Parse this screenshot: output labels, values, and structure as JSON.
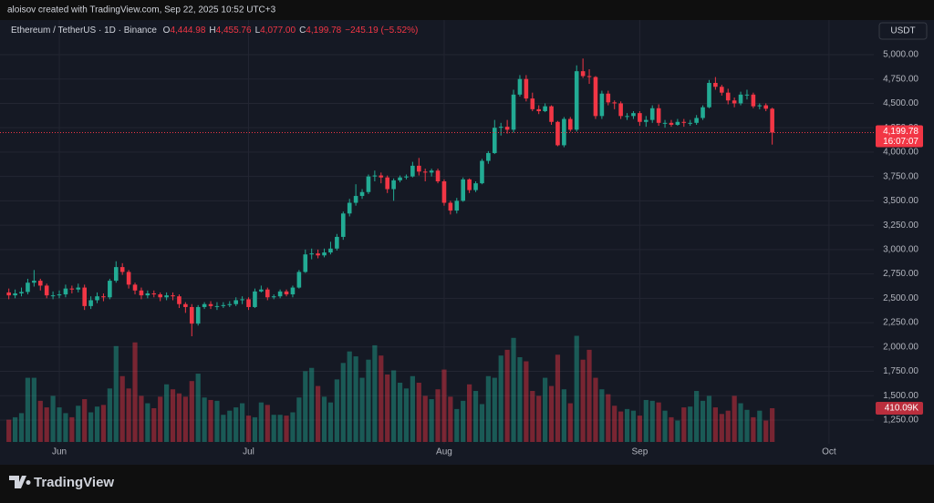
{
  "header": {
    "credit": "aloisov created with TradingView.com, Sep 22, 2025 10:52 UTC+3"
  },
  "footer": {
    "logo": "TradingView"
  },
  "chart_data": {
    "type": "candlestick",
    "title": "Ethereum / TetherUS · 1D · Binance",
    "ohlc_header": [
      {
        "key": "O",
        "value": "4,444.98"
      },
      {
        "key": "H",
        "value": "4,455.76"
      },
      {
        "key": "L",
        "value": "4,077.00"
      },
      {
        "key": "C",
        "value": "4,199.78"
      }
    ],
    "change": "−245.19 (−5.52%)",
    "currency": "USDT",
    "last_price_label": "4,199.78",
    "countdown": "16:07:07",
    "up_color": "#22ab94",
    "down_color": "#f23645",
    "grid": true,
    "open": [
      2560,
      2530,
      2550,
      2565,
      2660,
      2680,
      2630,
      2530,
      2530,
      2540,
      2600,
      2590,
      2610,
      2420,
      2480,
      2520,
      2510,
      2680,
      2820,
      2770,
      2640,
      2580,
      2530,
      2550,
      2540,
      2510,
      2530,
      2520,
      2440,
      2410,
      2240,
      2410,
      2440,
      2420,
      2420,
      2430,
      2440,
      2480,
      2490,
      2410,
      2570,
      2590,
      2510,
      2520,
      2570,
      2540,
      2610,
      2770,
      2950,
      2960,
      2940,
      2970,
      3010,
      3130,
      3370,
      3480,
      3550,
      3590,
      3750,
      3760,
      3740,
      3620,
      3710,
      3740,
      3750,
      3860,
      3800,
      3790,
      3810,
      3700,
      3480,
      3400,
      3500,
      3720,
      3610,
      3680,
      3910,
      3990,
      4250,
      4260,
      4230,
      4590,
      4750,
      4550,
      4440,
      4420,
      4470,
      4310,
      4070,
      4340,
      4230,
      4830,
      4780,
      4770,
      4370,
      4600,
      4510,
      4500,
      4370,
      4370,
      4400,
      4310,
      4330,
      4450,
      4300,
      4300,
      4280,
      4310,
      4300,
      4300,
      4350,
      4460,
      4710,
      4670,
      4610,
      4530,
      4500,
      4590,
      4590,
      4470,
      4480,
      4444.98
    ],
    "high": [
      2600,
      2590,
      2610,
      2700,
      2790,
      2700,
      2650,
      2570,
      2580,
      2640,
      2630,
      2650,
      2640,
      2520,
      2560,
      2550,
      2700,
      2880,
      2860,
      2790,
      2660,
      2610,
      2580,
      2580,
      2560,
      2560,
      2560,
      2540,
      2460,
      2440,
      2430,
      2460,
      2470,
      2460,
      2460,
      2470,
      2510,
      2520,
      2510,
      2600,
      2630,
      2610,
      2540,
      2590,
      2590,
      2630,
      2790,
      3000,
      3010,
      3000,
      3010,
      3080,
      3160,
      3390,
      3520,
      3670,
      3620,
      3770,
      3810,
      3790,
      3760,
      3730,
      3760,
      3770,
      3900,
      3940,
      3830,
      3830,
      3830,
      3720,
      3500,
      3530,
      3740,
      3730,
      3700,
      3930,
      4010,
      4330,
      4300,
      4330,
      4640,
      4790,
      4790,
      4610,
      4480,
      4500,
      4480,
      4320,
      4360,
      4360,
      4890,
      4960,
      4850,
      4780,
      4630,
      4630,
      4530,
      4520,
      4400,
      4420,
      4420,
      4370,
      4480,
      4490,
      4330,
      4330,
      4340,
      4340,
      4330,
      4380,
      4480,
      4740,
      4770,
      4690,
      4650,
      4560,
      4620,
      4640,
      4610,
      4500,
      4500,
      4455.76
    ],
    "low": [
      2490,
      2500,
      2520,
      2540,
      2620,
      2580,
      2500,
      2490,
      2500,
      2510,
      2550,
      2560,
      2380,
      2390,
      2450,
      2470,
      2490,
      2660,
      2740,
      2600,
      2540,
      2490,
      2500,
      2510,
      2470,
      2480,
      2480,
      2400,
      2350,
      2110,
      2220,
      2390,
      2390,
      2380,
      2400,
      2410,
      2420,
      2440,
      2380,
      2400,
      2560,
      2480,
      2490,
      2500,
      2520,
      2510,
      2600,
      2760,
      2900,
      2910,
      2920,
      2950,
      2990,
      3100,
      3340,
      3450,
      3520,
      3570,
      3700,
      3680,
      3580,
      3500,
      3690,
      3720,
      3740,
      3760,
      3700,
      3750,
      3680,
      3450,
      3360,
      3370,
      3490,
      3580,
      3590,
      3670,
      3880,
      3980,
      4170,
      4190,
      4200,
      4570,
      4520,
      4420,
      4390,
      4410,
      4280,
      4060,
      4050,
      4210,
      4210,
      4760,
      4700,
      4340,
      4340,
      4480,
      4440,
      4340,
      4330,
      4340,
      4270,
      4260,
      4300,
      4270,
      4250,
      4260,
      4270,
      4260,
      4270,
      4280,
      4330,
      4450,
      4640,
      4580,
      4490,
      4460,
      4480,
      4540,
      4450,
      4440,
      4420,
      4077
    ],
    "close": [
      2530,
      2550,
      2565,
      2660,
      2680,
      2630,
      2530,
      2530,
      2540,
      2600,
      2590,
      2610,
      2420,
      2480,
      2520,
      2510,
      2680,
      2820,
      2770,
      2640,
      2580,
      2530,
      2550,
      2540,
      2510,
      2530,
      2520,
      2440,
      2410,
      2240,
      2410,
      2440,
      2420,
      2420,
      2430,
      2440,
      2480,
      2490,
      2410,
      2570,
      2590,
      2510,
      2520,
      2570,
      2540,
      2610,
      2770,
      2950,
      2960,
      2940,
      2970,
      3010,
      3130,
      3370,
      3480,
      3550,
      3590,
      3750,
      3760,
      3740,
      3620,
      3710,
      3740,
      3750,
      3860,
      3800,
      3790,
      3810,
      3700,
      3480,
      3400,
      3500,
      3720,
      3610,
      3680,
      3910,
      3990,
      4250,
      4260,
      4230,
      4590,
      4750,
      4550,
      4440,
      4420,
      4470,
      4310,
      4070,
      4340,
      4230,
      4830,
      4780,
      4770,
      4370,
      4600,
      4510,
      4500,
      4370,
      4370,
      4400,
      4310,
      4330,
      4450,
      4300,
      4300,
      4280,
      4310,
      4300,
      4300,
      4350,
      4460,
      4710,
      4670,
      4610,
      4530,
      4500,
      4590,
      4590,
      4470,
      4480,
      4445,
      4199.78
    ],
    "volume": {
      "values": [
        270,
        300,
        350,
        780,
        780,
        500,
        420,
        560,
        420,
        350,
        300,
        440,
        520,
        360,
        430,
        450,
        650,
        1165,
        800,
        650,
        1210,
        560,
        470,
        410,
        550,
        700,
        640,
        590,
        550,
        740,
        830,
        540,
        510,
        500,
        330,
        380,
        420,
        470,
        320,
        300,
        480,
        450,
        330,
        330,
        320,
        360,
        540,
        860,
        900,
        680,
        550,
        480,
        760,
        960,
        1100,
        1040,
        780,
        1000,
        1175,
        1050,
        820,
        870,
        720,
        650,
        800,
        720,
        560,
        520,
        640,
        880,
        550,
        400,
        500,
        700,
        620,
        460,
        800,
        780,
        1050,
        1120,
        1265,
        1030,
        980,
        620,
        560,
        780,
        680,
        1060,
        640,
        470,
        1290,
        1000,
        1120,
        780,
        640,
        580,
        440,
        370,
        400,
        380,
        320,
        510,
        500,
        480,
        380,
        300,
        260,
        420,
        430,
        620,
        500,
        560,
        420,
        340,
        380,
        560,
        470,
        390,
        300,
        380,
        260,
        410.09
      ],
      "last_label": "410.09K",
      "ylim": [
        0,
        5150
      ]
    },
    "xlim": [
      -1.4,
      137.1
    ],
    "xticks": [
      {
        "value": 8,
        "label": "Jun"
      },
      {
        "value": 38,
        "label": "Jul"
      },
      {
        "value": 69,
        "label": "Aug"
      },
      {
        "value": 100,
        "label": "Sep"
      },
      {
        "value": 130,
        "label": "Oct"
      }
    ],
    "ylim": [
      1007,
      5355
    ],
    "yticks": [
      {
        "value": 1250,
        "label": "1,250.00"
      },
      {
        "value": 1500,
        "label": "1,500.00"
      },
      {
        "value": 1750,
        "label": "1,750.00"
      },
      {
        "value": 2000,
        "label": "2,000.00"
      },
      {
        "value": 2250,
        "label": "2,250.00"
      },
      {
        "value": 2500,
        "label": "2,500.00"
      },
      {
        "value": 2750,
        "label": "2,750.00"
      },
      {
        "value": 3000,
        "label": "3,000.00"
      },
      {
        "value": 3250,
        "label": "3,250.00"
      },
      {
        "value": 3500,
        "label": "3,500.00"
      },
      {
        "value": 3750,
        "label": "3,750.00"
      },
      {
        "value": 4000,
        "label": "4,000.00"
      },
      {
        "value": 4250,
        "label": "4,250.00"
      },
      {
        "value": 4500,
        "label": "4,500.00"
      },
      {
        "value": 4750,
        "label": "4,750.00"
      },
      {
        "value": 5000,
        "label": "5,000.00"
      }
    ]
  }
}
